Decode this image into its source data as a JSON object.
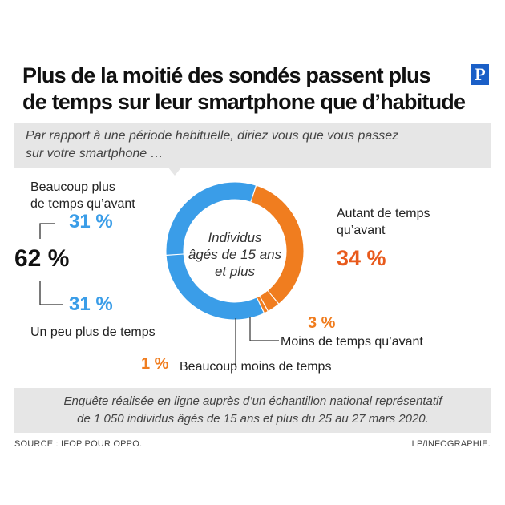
{
  "header": {
    "title_line1": "Plus de la moitié des sondés passent plus",
    "title_line2": "de temps sur leur smartphone que d’habitude",
    "logo": "P"
  },
  "question": {
    "line1": "Par rapport à une période habituelle, diriez vous que vous passez",
    "line2": "sur votre smartphone …"
  },
  "chart_data": {
    "type": "pie",
    "variant": "donut",
    "center_label": [
      "Individus",
      "âgés de 15 ans",
      "et plus"
    ],
    "series": [
      {
        "label": "Autant de temps qu’avant",
        "value": 34,
        "value_label": "34 %",
        "color": "#f07d1f"
      },
      {
        "label": "Moins de temps qu’avant",
        "value": 3,
        "value_label": "3 %",
        "color": "#f07d1f"
      },
      {
        "label": "Beaucoup moins de temps",
        "value": 1,
        "value_label": "1 %",
        "color": "#f07d1f"
      },
      {
        "label": "Un peu plus de temps",
        "value": 31,
        "value_label": "31 %",
        "color": "#3a9de8"
      },
      {
        "label": "Beaucoup plus de temps qu’avant",
        "value": 31,
        "value_label": "31 %",
        "color": "#3a9de8"
      }
    ],
    "group": {
      "value_label": "62 %"
    },
    "colors": {
      "blue": "#3a9de8",
      "orange": "#f07d1f",
      "pct_orange": "#e85a1c"
    }
  },
  "labels": {
    "beaucoup_plus_line1": "Beaucoup plus",
    "beaucoup_plus_line2": "de temps qu’avant",
    "autant_line1": "Autant de temps",
    "autant_line2": "qu’avant",
    "un_peu_plus": "Un peu plus de temps",
    "moins": "Moins de temps qu’avant",
    "beaucoup_moins": "Beaucoup moins de temps"
  },
  "footer": {
    "line1": "Enquête réalisée en ligne auprès d’un échantillon national représentatif",
    "line2": "de 1 050 individus âgés de 15 ans et plus du 25 au 27 mars 2020.",
    "source": "SOURCE : IFOP POUR OPPO.",
    "credit": "LP/INFOGRAPHIE."
  }
}
